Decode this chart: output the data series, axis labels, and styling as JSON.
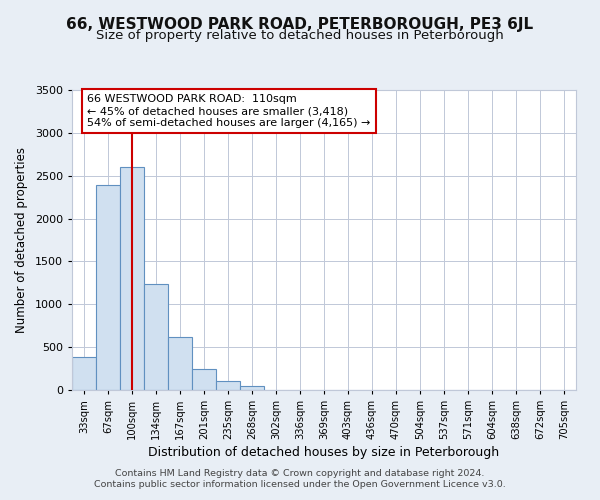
{
  "title": "66, WESTWOOD PARK ROAD, PETERBOROUGH, PE3 6JL",
  "subtitle": "Size of property relative to detached houses in Peterborough",
  "xlabel": "Distribution of detached houses by size in Peterborough",
  "ylabel": "Number of detached properties",
  "footnote1": "Contains HM Land Registry data © Crown copyright and database right 2024.",
  "footnote2": "Contains public sector information licensed under the Open Government Licence v3.0.",
  "bar_labels": [
    "33sqm",
    "67sqm",
    "100sqm",
    "134sqm",
    "167sqm",
    "201sqm",
    "235sqm",
    "268sqm",
    "302sqm",
    "336sqm",
    "369sqm",
    "403sqm",
    "436sqm",
    "470sqm",
    "504sqm",
    "537sqm",
    "571sqm",
    "604sqm",
    "638sqm",
    "672sqm",
    "705sqm"
  ],
  "bar_values": [
    380,
    2390,
    2600,
    1240,
    620,
    250,
    100,
    50,
    0,
    0,
    0,
    0,
    0,
    0,
    0,
    0,
    0,
    0,
    0,
    0,
    0
  ],
  "bar_color": "#d0e0f0",
  "bar_edge_color": "#6090c0",
  "annotation_text": "66 WESTWOOD PARK ROAD:  110sqm\n← 45% of detached houses are smaller (3,418)\n54% of semi-detached houses are larger (4,165) →",
  "vline_x": 2.0,
  "vline_color": "#cc0000",
  "annotation_box_edge_color": "#cc0000",
  "ylim": [
    0,
    3500
  ],
  "yticks": [
    0,
    500,
    1000,
    1500,
    2000,
    2500,
    3000,
    3500
  ],
  "background_color": "#e8eef5",
  "plot_bg_color": "#ffffff",
  "grid_color": "#c0c8d8",
  "title_fontsize": 11,
  "subtitle_fontsize": 9.5
}
